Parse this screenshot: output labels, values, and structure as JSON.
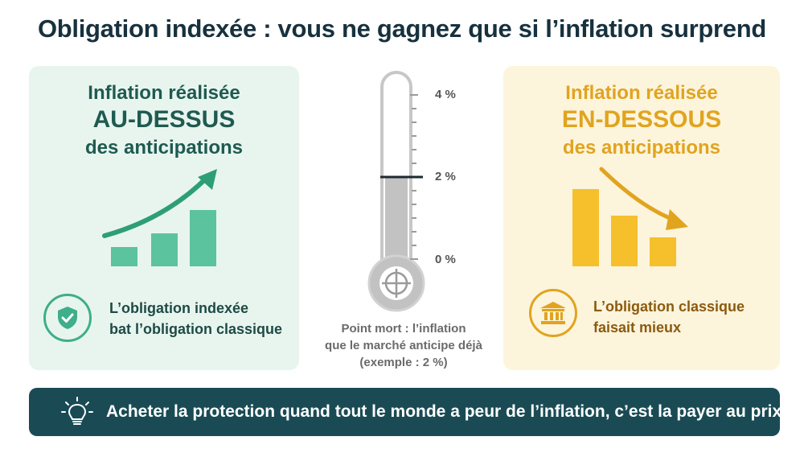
{
  "title": "Obligation indexée : vous ne gagnez que si l’inflation surprend",
  "left_panel": {
    "line1": "Inflation réalisée",
    "line2": "AU-DESSUS",
    "line3": "des anticipations",
    "badge_icon": "shield-check-icon",
    "badge_text_1": "L’obligation indexée",
    "badge_text_2": "bat l’obligation classique",
    "color": "#3fae8a"
  },
  "right_panel": {
    "line1": "Inflation réalisée",
    "line2": "EN-DESSOUS",
    "line3": "des anticipations",
    "badge_icon": "bank-icon",
    "badge_text_1": "L’obligation classique",
    "badge_text_2": "faisait mieux",
    "color": "#e0a41f"
  },
  "thermometer": {
    "ticks": [
      "4 %",
      "2 %",
      "0 %"
    ],
    "breakeven_value": 2,
    "max_value": 4,
    "note_1": "Point mort : l’inflation",
    "note_2": "que le marché anticipe déjà",
    "note_3": "(exemple : 2 %)",
    "icon": "target-icon"
  },
  "banner": {
    "icon": "lightbulb-icon",
    "text": "Acheter la protection quand tout le monde a peur de l’inflation, c’est la payer au prix fort"
  }
}
